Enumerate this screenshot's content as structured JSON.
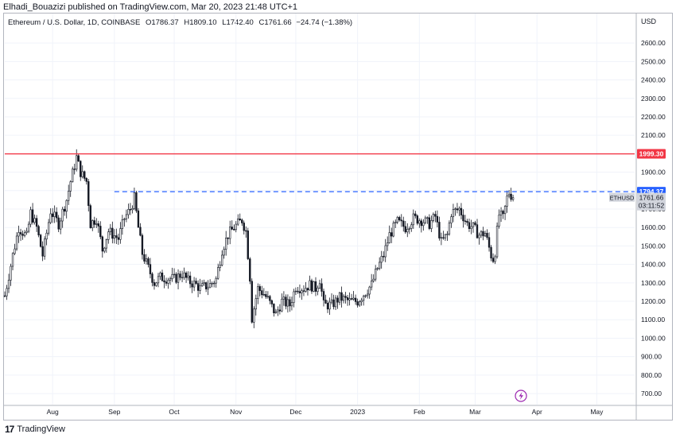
{
  "publisher_line": "Elhadi_Bouazizi published on TradingView.com, Mar 20, 2023 21:48 UTC+1",
  "legend": {
    "symbol": "Ethereum / U.S. Dollar, 1D, COINBASE",
    "open_label": "O",
    "open": "1786.37",
    "high_label": "H",
    "high": "1809.10",
    "low_label": "L",
    "low": "1742.40",
    "close_label": "C",
    "close": "1761.66",
    "change": "−24.74 (−1.38%)"
  },
  "footer": {
    "brand": "TradingView",
    "logo_glyph": "17"
  },
  "colors": {
    "up": "#131722",
    "down": "#131722",
    "grid": "#f0f3fa",
    "resistance": "#f23645",
    "dashed": "#2962ff",
    "price_tag": "#9598a1",
    "event_icon": "#9c27b0"
  },
  "chart_data": {
    "type": "candlestick",
    "currency": "USD",
    "ylim": [
      640,
      2760
    ],
    "y_ticks": [
      700,
      800,
      900,
      1000,
      1100,
      1200,
      1300,
      1400,
      1500,
      1600,
      1700,
      1800,
      1900,
      2000,
      2100,
      2200,
      2300,
      2400,
      2500,
      2600
    ],
    "y_tick_labels": [
      "700.00",
      "800.00",
      "900.00",
      "1000.00",
      "1100.00",
      "1200.00",
      "1300.00",
      "1400.00",
      "1500.00",
      "1600.00",
      "1700.00",
      "1800.00",
      "1900.00",
      "2000.00",
      "2100.00",
      "2200.00",
      "2300.00",
      "2400.00",
      "2500.00",
      "2600.00"
    ],
    "x_start": "2022-07-08",
    "x_end": "2023-05-20",
    "x_ticks": [
      {
        "date": "2022-08-01",
        "label": "Aug"
      },
      {
        "date": "2022-09-01",
        "label": "Sep"
      },
      {
        "date": "2022-10-01",
        "label": "Oct"
      },
      {
        "date": "2022-11-01",
        "label": "Nov"
      },
      {
        "date": "2022-12-01",
        "label": "Dec"
      },
      {
        "date": "2023-01-01",
        "label": "2023"
      },
      {
        "date": "2023-02-01",
        "label": "Feb"
      },
      {
        "date": "2023-03-01",
        "label": "Mar"
      },
      {
        "date": "2023-04-01",
        "label": "Apr"
      },
      {
        "date": "2023-05-01",
        "label": "May"
      }
    ],
    "last_date": "2023-03-20",
    "anchors": [
      [
        "2022-07-08",
        1230
      ],
      [
        "2022-07-12",
        1450
      ],
      [
        "2022-07-15",
        1600
      ],
      [
        "2022-07-19",
        1550
      ],
      [
        "2022-07-21",
        1680
      ],
      [
        "2022-07-24",
        1600
      ],
      [
        "2022-07-27",
        1450
      ],
      [
        "2022-07-31",
        1690
      ],
      [
        "2022-08-04",
        1620
      ],
      [
        "2022-08-08",
        1750
      ],
      [
        "2022-08-10",
        1850
      ],
      [
        "2022-08-13",
        1980
      ],
      [
        "2022-08-15",
        1900
      ],
      [
        "2022-08-18",
        1850
      ],
      [
        "2022-08-20",
        1620
      ],
      [
        "2022-08-23",
        1650
      ],
      [
        "2022-08-26",
        1480
      ],
      [
        "2022-08-29",
        1580
      ],
      [
        "2022-09-03",
        1540
      ],
      [
        "2022-09-06",
        1650
      ],
      [
        "2022-09-09",
        1700
      ],
      [
        "2022-09-11",
        1760
      ],
      [
        "2022-09-13",
        1600
      ],
      [
        "2022-09-15",
        1460
      ],
      [
        "2022-09-18",
        1380
      ],
      [
        "2022-09-21",
        1300
      ],
      [
        "2022-09-24",
        1330
      ],
      [
        "2022-10-01",
        1320
      ],
      [
        "2022-10-05",
        1350
      ],
      [
        "2022-10-08",
        1310
      ],
      [
        "2022-10-12",
        1290
      ],
      [
        "2022-10-14",
        1270
      ],
      [
        "2022-10-19",
        1290
      ],
      [
        "2022-10-22",
        1320
      ],
      [
        "2022-10-25",
        1480
      ],
      [
        "2022-10-28",
        1560
      ],
      [
        "2022-10-31",
        1600
      ],
      [
        "2022-11-04",
        1640
      ],
      [
        "2022-11-06",
        1580
      ],
      [
        "2022-11-08",
        1330
      ],
      [
        "2022-11-09",
        1110
      ],
      [
        "2022-11-12",
        1270
      ],
      [
        "2022-11-15",
        1240
      ],
      [
        "2022-11-17",
        1210
      ],
      [
        "2022-11-21",
        1130
      ],
      [
        "2022-11-24",
        1200
      ],
      [
        "2022-11-28",
        1180
      ],
      [
        "2022-12-01",
        1280
      ],
      [
        "2022-12-05",
        1270
      ],
      [
        "2022-12-08",
        1290
      ],
      [
        "2022-12-11",
        1270
      ],
      [
        "2022-12-13",
        1320
      ],
      [
        "2022-12-15",
        1180
      ],
      [
        "2022-12-19",
        1180
      ],
      [
        "2022-12-23",
        1220
      ],
      [
        "2022-12-28",
        1200
      ],
      [
        "2023-01-01",
        1200
      ],
      [
        "2023-01-05",
        1250
      ],
      [
        "2023-01-08",
        1290
      ],
      [
        "2023-01-11",
        1380
      ],
      [
        "2023-01-14",
        1450
      ],
      [
        "2023-01-17",
        1560
      ],
      [
        "2023-01-21",
        1630
      ],
      [
        "2023-01-25",
        1600
      ],
      [
        "2023-01-29",
        1650
      ],
      [
        "2023-02-02",
        1640
      ],
      [
        "2023-02-06",
        1620
      ],
      [
        "2023-02-09",
        1660
      ],
      [
        "2023-02-12",
        1520
      ],
      [
        "2023-02-15",
        1560
      ],
      [
        "2023-02-17",
        1680
      ],
      [
        "2023-02-21",
        1700
      ],
      [
        "2023-02-25",
        1620
      ],
      [
        "2023-02-28",
        1600
      ],
      [
        "2023-03-03",
        1560
      ],
      [
        "2023-03-06",
        1570
      ],
      [
        "2023-03-09",
        1450
      ],
      [
        "2023-03-10",
        1430
      ],
      [
        "2023-03-11",
        1470
      ],
      [
        "2023-03-12",
        1580
      ],
      [
        "2023-03-13",
        1670
      ],
      [
        "2023-03-15",
        1650
      ],
      [
        "2023-03-17",
        1760
      ],
      [
        "2023-03-18",
        1790
      ],
      [
        "2023-03-20",
        1761.66
      ]
    ],
    "horizontal_lines": [
      {
        "value": 1999.3,
        "label": "1999.30",
        "style": "solid"
      },
      {
        "value": 1794.37,
        "label": "1794.37",
        "style": "dashed",
        "from_date": "2022-09-01"
      }
    ],
    "last_price_tag": {
      "symbol": "ETHUSD",
      "value": "1761.66",
      "countdown": "03:11:52"
    }
  }
}
